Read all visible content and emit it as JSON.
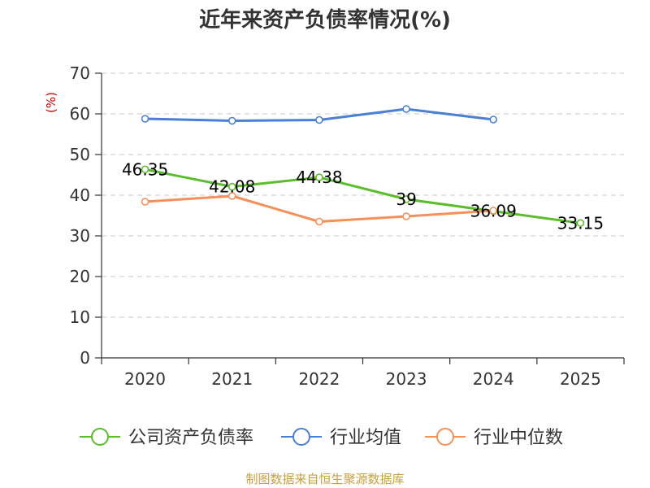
{
  "chart_data": {
    "type": "line",
    "title": "近年来资产负债率情况(%)",
    "unit_label": "(%)",
    "categories": [
      "2020",
      "2021",
      "2022",
      "2023",
      "2024",
      "2025"
    ],
    "ylim": [
      0,
      70
    ],
    "yticks": [
      0,
      10,
      20,
      30,
      40,
      50,
      60,
      70
    ],
    "grid": true,
    "legend_position": "bottom",
    "series": [
      {
        "name": "公司资产负债率",
        "color": "#5bbd2b",
        "values": [
          46.35,
          42.08,
          44.38,
          39,
          36.09,
          33.15
        ],
        "labels": [
          "46.35",
          "42.08",
          "44.38",
          "39",
          "36.09",
          "33.15"
        ]
      },
      {
        "name": "行业均值",
        "color": "#4a7fd4",
        "values": [
          58.8,
          58.3,
          58.5,
          61.2,
          58.6,
          null
        ]
      },
      {
        "name": "行业中位数",
        "color": "#f5905a",
        "values": [
          38.4,
          39.8,
          33.5,
          34.8,
          36.2,
          null
        ]
      }
    ]
  },
  "source": "制图数据来自恒生聚源数据库"
}
